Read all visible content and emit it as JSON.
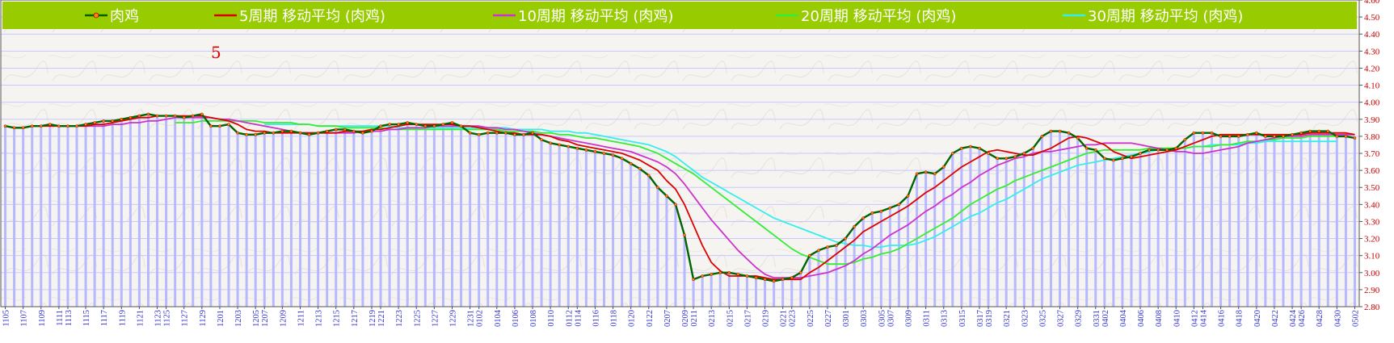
{
  "chart_data": {
    "type": "line",
    "annotation": "5",
    "ylim": [
      2.8,
      4.6
    ],
    "y_ticks": [
      "2.80",
      "2.90",
      "3.00",
      "3.10",
      "3.20",
      "3.30",
      "3.40",
      "3.50",
      "3.60",
      "3.70",
      "3.80",
      "3.90",
      "4.00",
      "4.10",
      "4.20",
      "4.30",
      "4.40",
      "4.50",
      "4.60"
    ],
    "x_tick_labels": [
      "1105",
      "1107",
      "1109",
      "1111",
      "1113",
      "1115",
      "1117",
      "1119",
      "1121",
      "1123",
      "1125",
      "1127",
      "1129",
      "1201",
      "1203",
      "1205",
      "1207",
      "1209",
      "1211",
      "1213",
      "1215",
      "1217",
      "1219",
      "1221",
      "1223",
      "1225",
      "1227",
      "1229",
      "1231",
      "0102",
      "0104",
      "0106",
      "0108",
      "0110",
      "0112",
      "0114",
      "0116",
      "0118",
      "0120",
      "0122",
      "0207",
      "0209",
      "0211",
      "0213",
      "0215",
      "0217",
      "0219",
      "0221",
      "0223",
      "0225",
      "0227",
      "0301",
      "0303",
      "0305",
      "0307",
      "0309",
      "0311",
      "0313",
      "0315",
      "0317",
      "0319",
      "0321",
      "0323",
      "0325",
      "0327",
      "0329",
      "0331",
      "0402",
      "0404",
      "0406",
      "0408",
      "0410",
      "0412",
      "0414",
      "0416",
      "0418",
      "0420",
      "0422",
      "0424",
      "0426",
      "0428",
      "0430",
      "0502"
    ],
    "legend": {
      "background": "#99cc00",
      "items": [
        {
          "label": "肉鸡",
          "color": "#006400"
        },
        {
          "label": "5周期  移动平均 (肉鸡)",
          "color": "#dd0000"
        },
        {
          "label": "10周期  移动平均 (肉鸡)",
          "color": "#cc33cc"
        },
        {
          "label": "20周期  移动平均 (肉鸡)",
          "color": "#33ee33"
        },
        {
          "label": "30周期  移动平均 (肉鸡)",
          "color": "#33eeee"
        }
      ]
    },
    "bar_color": "#b8b8ff",
    "series": [
      {
        "name": "肉鸡",
        "color": "#006400",
        "values": [
          3.86,
          3.85,
          3.85,
          3.86,
          3.86,
          3.87,
          3.86,
          3.86,
          3.86,
          3.87,
          3.88,
          3.89,
          3.89,
          3.9,
          3.91,
          3.92,
          3.93,
          3.92,
          3.92,
          3.92,
          3.91,
          3.92,
          3.93,
          3.86,
          3.86,
          3.87,
          3.82,
          3.81,
          3.81,
          3.82,
          3.82,
          3.83,
          3.83,
          3.82,
          3.81,
          3.82,
          3.83,
          3.84,
          3.84,
          3.83,
          3.82,
          3.83,
          3.86,
          3.87,
          3.87,
          3.88,
          3.87,
          3.86,
          3.86,
          3.87,
          3.88,
          3.86,
          3.82,
          3.81,
          3.82,
          3.82,
          3.82,
          3.81,
          3.81,
          3.82,
          3.78,
          3.76,
          3.75,
          3.74,
          3.73,
          3.72,
          3.71,
          3.7,
          3.69,
          3.67,
          3.64,
          3.61,
          3.57,
          3.5,
          3.45,
          3.4,
          3.22,
          2.96,
          2.98,
          2.99,
          3.0,
          3.0,
          2.99,
          2.98,
          2.97,
          2.96,
          2.95,
          2.96,
          2.97,
          3.0,
          3.1,
          3.13,
          3.15,
          3.16,
          3.2,
          3.27,
          3.32,
          3.35,
          3.36,
          3.38,
          3.4,
          3.45,
          3.58,
          3.59,
          3.58,
          3.62,
          3.7,
          3.73,
          3.74,
          3.73,
          3.7,
          3.67,
          3.67,
          3.68,
          3.7,
          3.73,
          3.8,
          3.83,
          3.83,
          3.82,
          3.79,
          3.73,
          3.72,
          3.67,
          3.66,
          3.67,
          3.68,
          3.7,
          3.72,
          3.72,
          3.72,
          3.73,
          3.78,
          3.82,
          3.82,
          3.82,
          3.8,
          3.8,
          3.8,
          3.81,
          3.82,
          3.8,
          3.8,
          3.8,
          3.81,
          3.82,
          3.83,
          3.83,
          3.83,
          3.8,
          3.8,
          3.79
        ]
      },
      {
        "name": "5周期  移动平均 (肉鸡)",
        "color": "#dd0000",
        "values": [
          null,
          null,
          null,
          null,
          3.86,
          3.86,
          3.86,
          3.86,
          3.86,
          3.86,
          3.87,
          3.87,
          3.88,
          3.89,
          3.9,
          3.91,
          3.91,
          3.92,
          3.92,
          3.92,
          3.92,
          3.92,
          3.92,
          3.91,
          3.9,
          3.89,
          3.87,
          3.84,
          3.83,
          3.83,
          3.82,
          3.82,
          3.82,
          3.82,
          3.82,
          3.82,
          3.82,
          3.82,
          3.83,
          3.83,
          3.83,
          3.84,
          3.84,
          3.85,
          3.86,
          3.87,
          3.87,
          3.87,
          3.87,
          3.87,
          3.87,
          3.86,
          3.86,
          3.85,
          3.84,
          3.83,
          3.82,
          3.82,
          3.81,
          3.81,
          3.81,
          3.8,
          3.78,
          3.77,
          3.75,
          3.74,
          3.73,
          3.72,
          3.71,
          3.7,
          3.68,
          3.66,
          3.63,
          3.6,
          3.54,
          3.49,
          3.4,
          3.28,
          3.16,
          3.06,
          3.01,
          2.98,
          2.98,
          2.98,
          2.98,
          2.97,
          2.96,
          2.96,
          2.96,
          2.96,
          3.0,
          3.03,
          3.07,
          3.11,
          3.15,
          3.19,
          3.24,
          3.27,
          3.3,
          3.33,
          3.36,
          3.39,
          3.43,
          3.47,
          3.5,
          3.54,
          3.58,
          3.62,
          3.65,
          3.68,
          3.71,
          3.72,
          3.71,
          3.7,
          3.69,
          3.69,
          3.71,
          3.73,
          3.76,
          3.79,
          3.8,
          3.79,
          3.77,
          3.75,
          3.71,
          3.69,
          3.67,
          3.68,
          3.69,
          3.7,
          3.71,
          3.72,
          3.74,
          3.76,
          3.78,
          3.8,
          3.81,
          3.81,
          3.81,
          3.81,
          3.81,
          3.81,
          3.81,
          3.81,
          3.81,
          3.81,
          3.82,
          3.82,
          3.82,
          3.82,
          3.82,
          3.81
        ]
      },
      {
        "name": "10周期  移动平均 (肉鸡)",
        "color": "#cc33cc",
        "values": [
          null,
          null,
          null,
          null,
          null,
          null,
          null,
          null,
          null,
          3.86,
          3.86,
          3.86,
          3.87,
          3.87,
          3.88,
          3.88,
          3.89,
          3.89,
          3.9,
          3.91,
          3.91,
          3.91,
          3.91,
          3.91,
          3.9,
          3.9,
          3.89,
          3.88,
          3.87,
          3.86,
          3.85,
          3.84,
          3.83,
          3.82,
          3.82,
          3.82,
          3.82,
          3.82,
          3.82,
          3.82,
          3.83,
          3.83,
          3.83,
          3.84,
          3.84,
          3.85,
          3.85,
          3.85,
          3.86,
          3.86,
          3.86,
          3.86,
          3.86,
          3.86,
          3.85,
          3.85,
          3.84,
          3.84,
          3.83,
          3.82,
          3.81,
          3.8,
          3.79,
          3.78,
          3.77,
          3.76,
          3.75,
          3.74,
          3.73,
          3.72,
          3.71,
          3.69,
          3.67,
          3.65,
          3.62,
          3.58,
          3.52,
          3.45,
          3.38,
          3.31,
          3.25,
          3.19,
          3.13,
          3.08,
          3.03,
          2.99,
          2.97,
          2.97,
          2.97,
          2.97,
          2.98,
          2.99,
          3.0,
          3.02,
          3.04,
          3.07,
          3.11,
          3.14,
          3.18,
          3.22,
          3.25,
          3.28,
          3.32,
          3.36,
          3.39,
          3.43,
          3.46,
          3.5,
          3.53,
          3.57,
          3.6,
          3.63,
          3.65,
          3.67,
          3.68,
          3.7,
          3.71,
          3.71,
          3.72,
          3.73,
          3.74,
          3.75,
          3.75,
          3.76,
          3.76,
          3.76,
          3.76,
          3.75,
          3.74,
          3.73,
          3.72,
          3.71,
          3.71,
          3.7,
          3.7,
          3.71,
          3.72,
          3.73,
          3.74,
          3.76,
          3.77,
          3.78,
          3.79,
          3.8,
          3.8,
          3.8,
          3.81,
          3.81,
          3.81,
          3.81,
          3.81,
          3.81
        ]
      },
      {
        "name": "20周期  移动平均 (肉鸡)",
        "color": "#33ee33",
        "values": [
          null,
          null,
          null,
          null,
          null,
          null,
          null,
          null,
          null,
          null,
          null,
          null,
          null,
          null,
          null,
          null,
          null,
          null,
          null,
          3.88,
          3.88,
          3.88,
          3.89,
          3.89,
          3.89,
          3.89,
          3.89,
          3.89,
          3.89,
          3.88,
          3.88,
          3.88,
          3.88,
          3.87,
          3.87,
          3.86,
          3.86,
          3.86,
          3.85,
          3.85,
          3.85,
          3.85,
          3.85,
          3.84,
          3.84,
          3.84,
          3.84,
          3.84,
          3.84,
          3.84,
          3.84,
          3.84,
          3.84,
          3.84,
          3.84,
          3.84,
          3.83,
          3.83,
          3.83,
          3.83,
          3.82,
          3.82,
          3.81,
          3.81,
          3.8,
          3.79,
          3.79,
          3.78,
          3.77,
          3.76,
          3.75,
          3.74,
          3.72,
          3.7,
          3.67,
          3.64,
          3.61,
          3.58,
          3.54,
          3.5,
          3.46,
          3.42,
          3.38,
          3.34,
          3.3,
          3.26,
          3.22,
          3.18,
          3.14,
          3.11,
          3.09,
          3.07,
          3.05,
          3.05,
          3.05,
          3.06,
          3.08,
          3.09,
          3.11,
          3.12,
          3.14,
          3.17,
          3.2,
          3.23,
          3.26,
          3.29,
          3.32,
          3.36,
          3.4,
          3.43,
          3.46,
          3.49,
          3.51,
          3.54,
          3.56,
          3.58,
          3.6,
          3.62,
          3.64,
          3.66,
          3.68,
          3.7,
          3.71,
          3.72,
          3.72,
          3.72,
          3.72,
          3.72,
          3.73,
          3.73,
          3.73,
          3.73,
          3.73,
          3.74,
          3.74,
          3.74,
          3.75,
          3.75,
          3.76,
          3.77,
          3.77,
          3.78,
          3.78,
          3.79,
          3.79,
          3.79,
          3.8,
          3.8,
          3.8,
          3.8
        ]
      },
      {
        "name": "30周期  移动平均 (肉鸡)",
        "color": "#33eeee",
        "values": [
          null,
          null,
          null,
          null,
          null,
          null,
          null,
          null,
          null,
          null,
          null,
          null,
          null,
          null,
          null,
          null,
          null,
          null,
          null,
          null,
          null,
          null,
          null,
          null,
          null,
          null,
          null,
          null,
          null,
          3.87,
          3.87,
          3.87,
          3.87,
          3.87,
          3.87,
          3.86,
          3.86,
          3.86,
          3.86,
          3.86,
          3.86,
          3.86,
          3.86,
          3.86,
          3.85,
          3.85,
          3.85,
          3.85,
          3.85,
          3.85,
          3.85,
          3.85,
          3.85,
          3.85,
          3.85,
          3.85,
          3.85,
          3.84,
          3.84,
          3.84,
          3.84,
          3.83,
          3.83,
          3.83,
          3.82,
          3.82,
          3.81,
          3.8,
          3.79,
          3.78,
          3.77,
          3.76,
          3.75,
          3.73,
          3.71,
          3.68,
          3.64,
          3.6,
          3.56,
          3.53,
          3.5,
          3.47,
          3.44,
          3.41,
          3.38,
          3.35,
          3.32,
          3.3,
          3.28,
          3.26,
          3.24,
          3.22,
          3.2,
          3.18,
          3.17,
          3.16,
          3.16,
          3.15,
          3.15,
          3.16,
          3.16,
          3.16,
          3.17,
          3.19,
          3.21,
          3.24,
          3.27,
          3.3,
          3.33,
          3.35,
          3.38,
          3.41,
          3.43,
          3.46,
          3.49,
          3.52,
          3.55,
          3.57,
          3.59,
          3.61,
          3.63,
          3.64,
          3.65,
          3.66,
          3.67,
          3.68,
          3.69,
          3.7,
          3.71,
          3.72,
          3.72,
          3.73,
          3.73,
          3.74,
          3.74,
          3.75,
          3.75,
          3.75,
          3.75,
          3.76,
          3.76,
          3.77,
          3.77,
          3.77,
          3.77,
          3.77,
          3.77,
          3.77,
          3.77,
          3.77
        ]
      }
    ]
  }
}
